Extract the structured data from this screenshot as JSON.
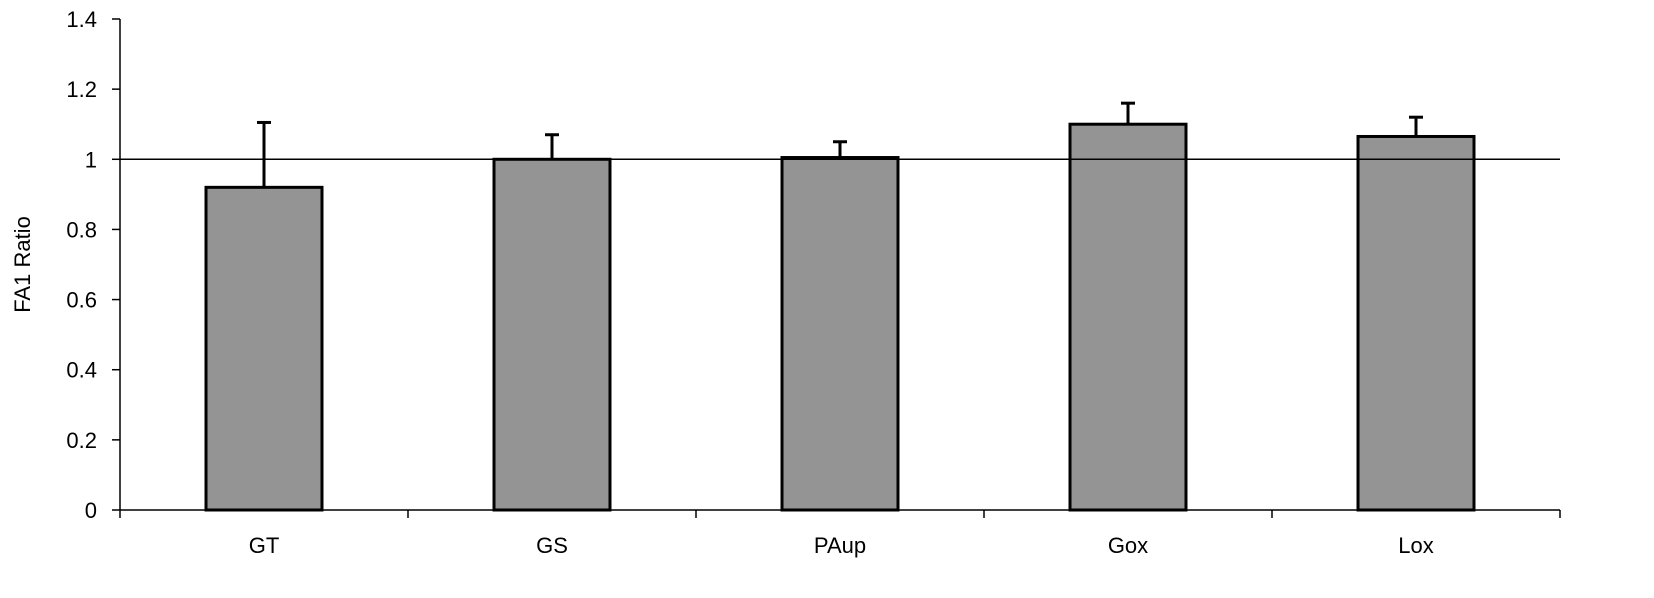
{
  "chart_data": {
    "type": "bar",
    "title": "",
    "xlabel": "",
    "ylabel": "FA1 Ratio",
    "categories": [
      "GT",
      "GS",
      "PAup",
      "Gox",
      "Lox"
    ],
    "values": [
      0.92,
      1.0,
      1.005,
      1.1,
      1.065
    ],
    "error_upper": [
      0.185,
      0.07,
      0.045,
      0.06,
      0.055
    ],
    "reference_line": 1,
    "ylim": [
      0,
      1.4
    ],
    "yticks": [
      "0",
      "0.2",
      "0.4",
      "0.6",
      "0.8",
      "1",
      "1.2",
      "1.4"
    ],
    "ytick_values": [
      0,
      0.2,
      0.4,
      0.6,
      0.8,
      1.0,
      1.2,
      1.4
    ],
    "grid": false,
    "legend": "none",
    "colors": {
      "bar_fill": "#949494",
      "bar_stroke": "#000000",
      "axis": "#000000"
    }
  }
}
